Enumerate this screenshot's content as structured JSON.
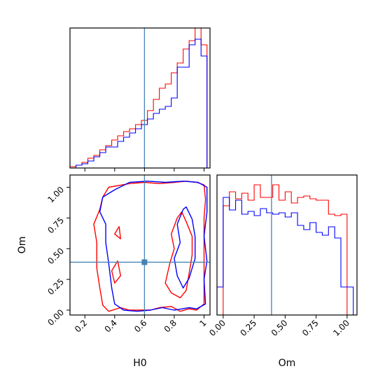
{
  "chart_data": {
    "type": "corner",
    "parameters": [
      "H0",
      "Om"
    ],
    "truth": {
      "H0": 0.6,
      "Om": 0.39
    },
    "colors": {
      "run_a": "#ff0000",
      "run_b": "#0000ff",
      "truth": "#4682b4"
    },
    "panels": [
      {
        "id": "H0_marginal",
        "type": "histogram",
        "xlim": [
          0.1,
          1.04
        ],
        "ylim": [
          0,
          1.0
        ],
        "xticks": [
          0.2,
          0.4,
          0.6,
          0.8,
          1.0
        ],
        "edges": [
          0.1,
          0.14,
          0.18,
          0.22,
          0.26,
          0.3,
          0.34,
          0.38,
          0.42,
          0.46,
          0.5,
          0.54,
          0.58,
          0.62,
          0.66,
          0.7,
          0.74,
          0.78,
          0.82,
          0.86,
          0.9,
          0.94,
          0.98,
          1.02
        ],
        "series": [
          {
            "color": "red",
            "values": [
              0.01,
              0.02,
              0.04,
              0.07,
              0.09,
              0.13,
              0.16,
              0.2,
              0.23,
              0.26,
              0.28,
              0.31,
              0.34,
              0.41,
              0.49,
              0.57,
              0.6,
              0.68,
              0.75,
              0.85,
              0.91,
              1.0,
              0.88
            ]
          },
          {
            "color": "blue",
            "values": [
              0.0,
              0.02,
              0.03,
              0.05,
              0.08,
              0.11,
              0.15,
              0.15,
              0.19,
              0.22,
              0.25,
              0.28,
              0.31,
              0.35,
              0.39,
              0.42,
              0.44,
              0.5,
              0.72,
              0.72,
              0.88,
              0.92,
              0.8
            ]
          }
        ]
      },
      {
        "id": "H0_Om_contour",
        "type": "contour",
        "xlim": [
          0.1,
          1.04
        ],
        "ylim": [
          -0.04,
          1.1
        ],
        "xticks": [
          0.2,
          0.4,
          0.6,
          0.8,
          1.0
        ],
        "yticks": [
          0.0,
          0.25,
          0.5,
          0.75,
          1.0
        ],
        "xlabel": "H0",
        "ylabel": "Om",
        "series": [
          {
            "color": "red",
            "contours": [
              [
                [
                  0.36,
                  1.0
                ],
                [
                  0.5,
                  1.03
                ],
                [
                  0.6,
                  1.04
                ],
                [
                  0.7,
                  1.03
                ],
                [
                  0.8,
                  1.04
                ],
                [
                  0.88,
                  1.05
                ],
                [
                  0.95,
                  1.04
                ],
                [
                  1.0,
                  1.02
                ],
                [
                  1.01,
                  0.9
                ],
                [
                  1.0,
                  0.75
                ],
                [
                  1.0,
                  0.55
                ],
                [
                  1.0,
                  0.38
                ],
                [
                  1.0,
                  0.22
                ],
                [
                  1.0,
                  0.05
                ],
                [
                  0.95,
                  0.0
                ],
                [
                  0.9,
                  0.01
                ],
                [
                  0.84,
                  -0.01
                ],
                [
                  0.78,
                  0.03
                ],
                [
                  0.7,
                  0.02
                ],
                [
                  0.64,
                  0.0
                ],
                [
                  0.6,
                  0.0
                ],
                [
                  0.5,
                  0.0
                ],
                [
                  0.44,
                  0.02
                ],
                [
                  0.36,
                  -0.01
                ],
                [
                  0.32,
                  0.04
                ],
                [
                  0.3,
                  0.18
                ],
                [
                  0.28,
                  0.34
                ],
                [
                  0.28,
                  0.55
                ],
                [
                  0.26,
                  0.7
                ],
                [
                  0.3,
                  0.82
                ],
                [
                  0.32,
                  0.92
                ],
                [
                  0.36,
                  1.0
                ]
              ],
              [
                [
                  0.82,
                  0.75
                ],
                [
                  0.78,
                  0.62
                ],
                [
                  0.8,
                  0.5
                ],
                [
                  0.77,
                  0.38
                ],
                [
                  0.74,
                  0.22
                ],
                [
                  0.78,
                  0.14
                ],
                [
                  0.84,
                  0.1
                ],
                [
                  0.88,
                  0.16
                ],
                [
                  0.9,
                  0.3
                ],
                [
                  0.92,
                  0.45
                ],
                [
                  0.92,
                  0.6
                ],
                [
                  0.88,
                  0.72
                ],
                [
                  0.85,
                  0.8
                ],
                [
                  0.82,
                  0.75
                ]
              ],
              [
                [
                  0.38,
                  0.32
                ],
                [
                  0.42,
                  0.4
                ],
                [
                  0.44,
                  0.28
                ],
                [
                  0.4,
                  0.22
                ],
                [
                  0.38,
                  0.32
                ]
              ],
              [
                [
                  0.4,
                  0.62
                ],
                [
                  0.43,
                  0.68
                ],
                [
                  0.44,
                  0.58
                ],
                [
                  0.4,
                  0.62
                ]
              ]
            ]
          },
          {
            "color": "blue",
            "contours": [
              [
                [
                  0.32,
                  0.92
                ],
                [
                  0.4,
                  0.98
                ],
                [
                  0.5,
                  1.04
                ],
                [
                  0.62,
                  1.05
                ],
                [
                  0.74,
                  1.04
                ],
                [
                  0.86,
                  1.05
                ],
                [
                  0.96,
                  1.04
                ],
                [
                  1.02,
                  1.0
                ],
                [
                  1.02,
                  0.8
                ],
                [
                  1.0,
                  0.6
                ],
                [
                  1.02,
                  0.4
                ],
                [
                  1.0,
                  0.25
                ],
                [
                  1.01,
                  0.05
                ],
                [
                  0.95,
                  0.01
                ],
                [
                  0.9,
                  0.02
                ],
                [
                  0.8,
                  0.0
                ],
                [
                  0.72,
                  0.02
                ],
                [
                  0.64,
                  0.0
                ],
                [
                  0.55,
                  -0.01
                ],
                [
                  0.46,
                  0.0
                ],
                [
                  0.4,
                  0.05
                ],
                [
                  0.38,
                  0.18
                ],
                [
                  0.36,
                  0.38
                ],
                [
                  0.34,
                  0.55
                ],
                [
                  0.34,
                  0.7
                ],
                [
                  0.3,
                  0.8
                ],
                [
                  0.32,
                  0.92
                ]
              ],
              [
                [
                  0.86,
                  0.82
                ],
                [
                  0.82,
                  0.7
                ],
                [
                  0.84,
                  0.55
                ],
                [
                  0.8,
                  0.42
                ],
                [
                  0.82,
                  0.28
                ],
                [
                  0.86,
                  0.18
                ],
                [
                  0.9,
                  0.26
                ],
                [
                  0.94,
                  0.42
                ],
                [
                  0.94,
                  0.6
                ],
                [
                  0.92,
                  0.74
                ],
                [
                  0.88,
                  0.84
                ],
                [
                  0.86,
                  0.82
                ]
              ]
            ]
          }
        ]
      },
      {
        "id": "Om_marginal",
        "type": "histogram",
        "xlim": [
          -0.05,
          1.08
        ],
        "ylim": [
          0,
          1.0
        ],
        "xticks": [
          0.0,
          0.25,
          0.5,
          0.75,
          1.0
        ],
        "xticklabels": [
          "0.00",
          "0.25",
          "0.50",
          "0.75",
          "1.00"
        ],
        "xlabel": "Om",
        "edges": [
          -0.05,
          0.0,
          0.05,
          0.1,
          0.15,
          0.2,
          0.25,
          0.3,
          0.35,
          0.4,
          0.45,
          0.5,
          0.55,
          0.6,
          0.65,
          0.7,
          0.75,
          0.8,
          0.85,
          0.9,
          0.95,
          1.0,
          1.05
        ],
        "series": [
          {
            "color": "red",
            "values": [
              0.0,
              0.78,
              0.88,
              0.83,
              0.87,
              0.82,
              0.93,
              0.84,
              0.84,
              0.93,
              0.82,
              0.88,
              0.8,
              0.84,
              0.85,
              0.83,
              0.82,
              0.82,
              0.72,
              0.71,
              0.72,
              0.0
            ]
          },
          {
            "color": "blue",
            "values": [
              0.2,
              0.84,
              0.75,
              0.82,
              0.72,
              0.74,
              0.71,
              0.76,
              0.73,
              0.72,
              0.73,
              0.7,
              0.73,
              0.64,
              0.61,
              0.66,
              0.59,
              0.57,
              0.63,
              0.55,
              0.2,
              0.2
            ]
          }
        ]
      }
    ]
  }
}
